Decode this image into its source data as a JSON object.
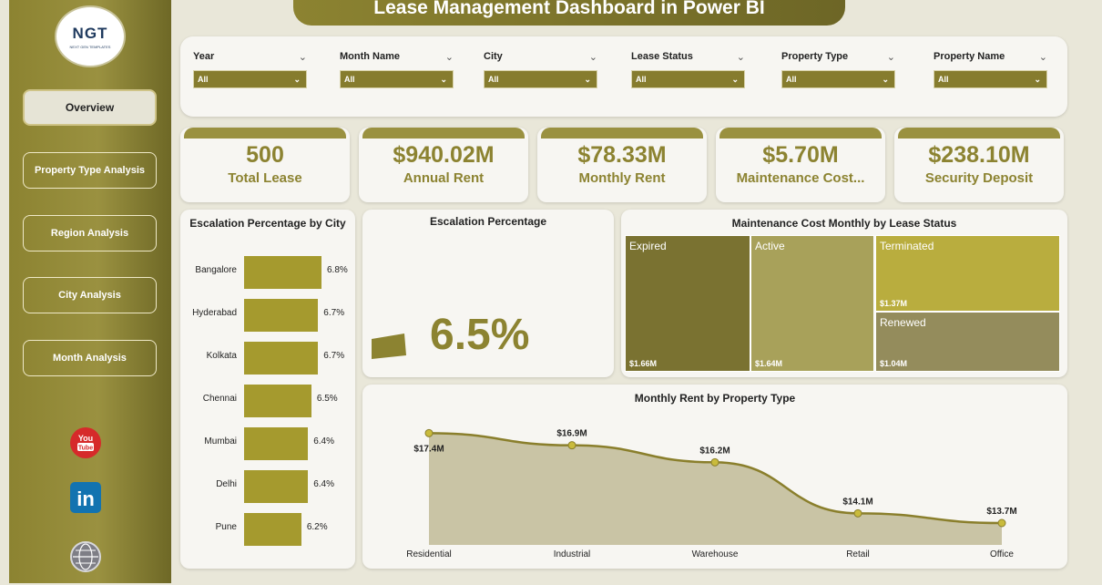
{
  "title": "Lease Management Dashboard in Power BI",
  "logo": {
    "mark": "NGT",
    "sub": "NEXT GEN TEMPLATES"
  },
  "nav": [
    {
      "label": "Overview"
    },
    {
      "label": "Property Type Analysis"
    },
    {
      "label": "Region Analysis"
    },
    {
      "label": "City Analysis"
    },
    {
      "label": "Month Analysis"
    }
  ],
  "social": {
    "youtube": "You\nTube",
    "linkedin": "in"
  },
  "filters": [
    {
      "label": "Year",
      "value": "All"
    },
    {
      "label": "Month Name",
      "value": "All"
    },
    {
      "label": "City",
      "value": "All"
    },
    {
      "label": "Lease Status",
      "value": "All"
    },
    {
      "label": "Property Type",
      "value": "All"
    },
    {
      "label": "Property Name",
      "value": "All"
    }
  ],
  "kpis": [
    {
      "value": "500",
      "label": "Total Lease"
    },
    {
      "value": "$940.02M",
      "label": "Annual Rent"
    },
    {
      "value": "$78.33M",
      "label": "Monthly Rent"
    },
    {
      "value": "$5.70M",
      "label": "Maintenance Cost..."
    },
    {
      "value": "$238.10M",
      "label": "Security Deposit"
    }
  ],
  "gauge": {
    "title": "Escalation Percentage",
    "value": "6.5%"
  },
  "colors": {
    "accent": "#8c8331",
    "bar": "#a59a2e",
    "area": "#c9c4a5"
  },
  "chart_data": [
    {
      "type": "bar",
      "title": "Escalation Percentage by City",
      "categories": [
        "Bangalore",
        "Hyderabad",
        "Kolkata",
        "Chennai",
        "Mumbai",
        "Delhi",
        "Pune"
      ],
      "values": [
        6.8,
        6.7,
        6.7,
        6.5,
        6.4,
        6.4,
        6.2
      ],
      "labels": [
        "6.8%",
        "6.7%",
        "6.7%",
        "6.5%",
        "6.4%",
        "6.4%",
        "6.2%"
      ]
    },
    {
      "type": "treemap",
      "title": "Maintenance Cost Monthly by Lease Status",
      "items": [
        {
          "name": "Expired",
          "value": 1.66,
          "label": "$1.66M",
          "color": "#7a7231"
        },
        {
          "name": "Active",
          "value": 1.64,
          "label": "$1.64M",
          "color": "#a8a15a"
        },
        {
          "name": "Terminated",
          "value": 1.37,
          "label": "$1.37M",
          "color": "#b9ad3e"
        },
        {
          "name": "Renewed",
          "value": 1.04,
          "label": "$1.04M",
          "color": "#948c5c"
        }
      ]
    },
    {
      "type": "area",
      "title": "Monthly Rent by Property Type",
      "categories": [
        "Residential",
        "Industrial",
        "Warehouse",
        "Retail",
        "Office"
      ],
      "values": [
        17.4,
        16.9,
        16.2,
        14.1,
        13.7
      ],
      "labels": [
        "$17.4M",
        "$16.9M",
        "$16.2M",
        "$14.1M",
        "$13.7M"
      ]
    }
  ]
}
